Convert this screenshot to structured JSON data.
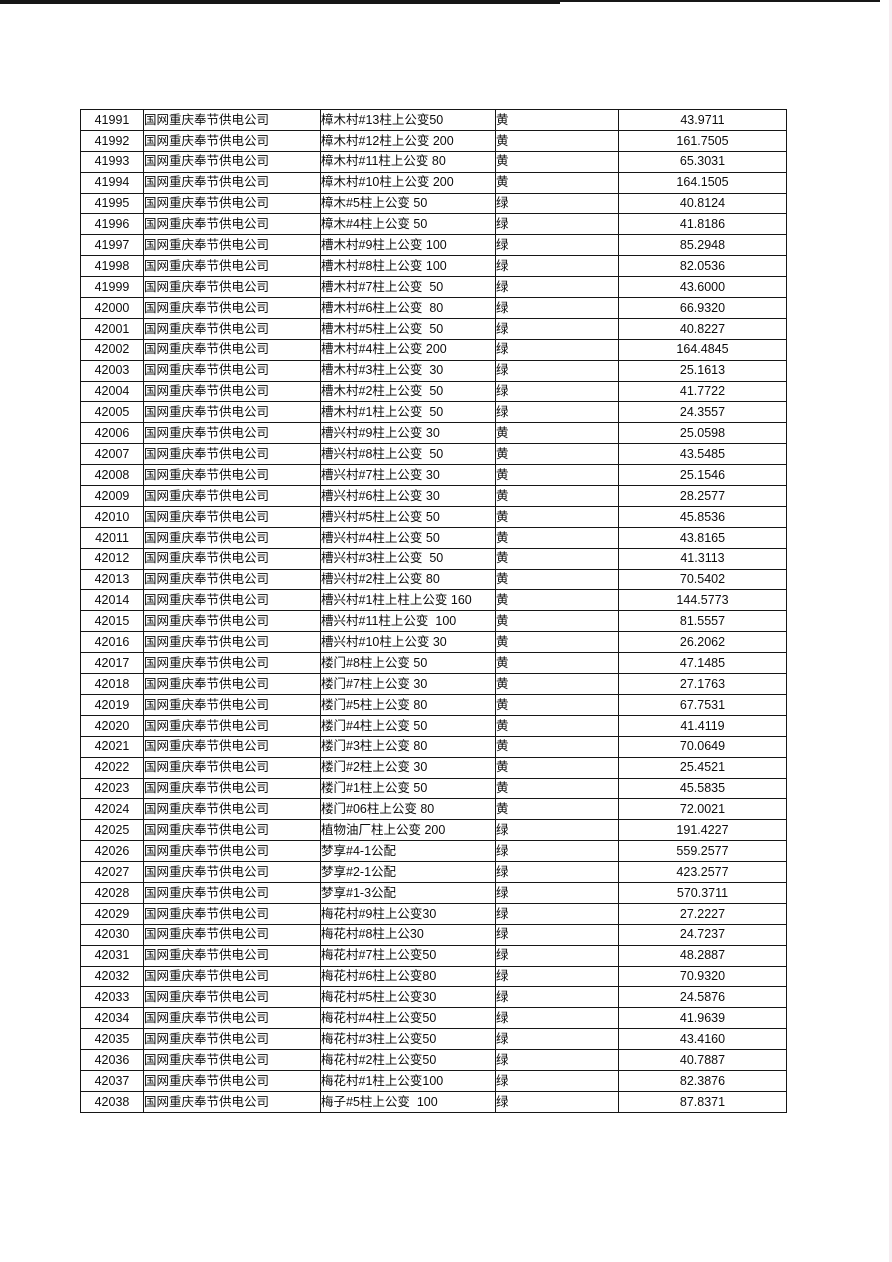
{
  "page": {
    "kind": "scanned-table-page"
  },
  "colors": {
    "ink": "#161616",
    "text": "#0c0c0c",
    "edge": "#f6edf1",
    "background": "#ffffff"
  },
  "table": {
    "columns": [
      {
        "key": "id"
      },
      {
        "key": "company"
      },
      {
        "key": "name"
      },
      {
        "key": "flag"
      },
      {
        "key": "value"
      }
    ],
    "rows": [
      [
        "41991",
        "国网重庆奉节供电公司",
        "樟木村#13柱上公变50",
        "黄",
        "43.9711"
      ],
      [
        "41992",
        "国网重庆奉节供电公司",
        "樟木村#12柱上公变 200",
        "黄",
        "161.7505"
      ],
      [
        "41993",
        "国网重庆奉节供电公司",
        "樟木村#11柱上公变 80",
        "黄",
        "65.3031"
      ],
      [
        "41994",
        "国网重庆奉节供电公司",
        "樟木村#10柱上公变 200",
        "黄",
        "164.1505"
      ],
      [
        "41995",
        "国网重庆奉节供电公司",
        "樟木#5柱上公变 50",
        "绿",
        "40.8124"
      ],
      [
        "41996",
        "国网重庆奉节供电公司",
        "樟木#4柱上公变 50",
        "绿",
        "41.8186"
      ],
      [
        "41997",
        "国网重庆奉节供电公司",
        "槽木村#9柱上公变 100",
        "绿",
        "85.2948"
      ],
      [
        "41998",
        "国网重庆奉节供电公司",
        "槽木村#8柱上公变 100",
        "绿",
        "82.0536"
      ],
      [
        "41999",
        "国网重庆奉节供电公司",
        "槽木村#7柱上公变  50",
        "绿",
        "43.6000"
      ],
      [
        "42000",
        "国网重庆奉节供电公司",
        "槽木村#6柱上公变  80",
        "绿",
        "66.9320"
      ],
      [
        "42001",
        "国网重庆奉节供电公司",
        "槽木村#5柱上公变  50",
        "绿",
        "40.8227"
      ],
      [
        "42002",
        "国网重庆奉节供电公司",
        "槽木村#4柱上公变 200",
        "绿",
        "164.4845"
      ],
      [
        "42003",
        "国网重庆奉节供电公司",
        "槽木村#3柱上公变  30",
        "绿",
        "25.1613"
      ],
      [
        "42004",
        "国网重庆奉节供电公司",
        "槽木村#2柱上公变  50",
        "绿",
        "41.7722"
      ],
      [
        "42005",
        "国网重庆奉节供电公司",
        "槽木村#1柱上公变  50",
        "绿",
        "24.3557"
      ],
      [
        "42006",
        "国网重庆奉节供电公司",
        "槽兴村#9柱上公变 30",
        "黄",
        "25.0598"
      ],
      [
        "42007",
        "国网重庆奉节供电公司",
        "槽兴村#8柱上公变  50",
        "黄",
        "43.5485"
      ],
      [
        "42008",
        "国网重庆奉节供电公司",
        "槽兴村#7柱上公变 30",
        "黄",
        "25.1546"
      ],
      [
        "42009",
        "国网重庆奉节供电公司",
        "槽兴村#6柱上公变 30",
        "黄",
        "28.2577"
      ],
      [
        "42010",
        "国网重庆奉节供电公司",
        "槽兴村#5柱上公变 50",
        "黄",
        "45.8536"
      ],
      [
        "42011",
        "国网重庆奉节供电公司",
        "槽兴村#4柱上公变 50",
        "黄",
        "43.8165"
      ],
      [
        "42012",
        "国网重庆奉节供电公司",
        "槽兴村#3柱上公变  50",
        "黄",
        "41.3113"
      ],
      [
        "42013",
        "国网重庆奉节供电公司",
        "槽兴村#2柱上公变 80",
        "黄",
        "70.5402"
      ],
      [
        "42014",
        "国网重庆奉节供电公司",
        "槽兴村#1柱上柱上公变 160",
        "黄",
        "144.5773"
      ],
      [
        "42015",
        "国网重庆奉节供电公司",
        "槽兴村#11柱上公变  100",
        "黄",
        "81.5557"
      ],
      [
        "42016",
        "国网重庆奉节供电公司",
        "槽兴村#10柱上公变 30",
        "黄",
        "26.2062"
      ],
      [
        "42017",
        "国网重庆奉节供电公司",
        "楼门#8柱上公变 50",
        "黄",
        "47.1485"
      ],
      [
        "42018",
        "国网重庆奉节供电公司",
        "楼门#7柱上公变 30",
        "黄",
        "27.1763"
      ],
      [
        "42019",
        "国网重庆奉节供电公司",
        "楼门#5柱上公变 80",
        "黄",
        "67.7531"
      ],
      [
        "42020",
        "国网重庆奉节供电公司",
        "楼门#4柱上公变 50",
        "黄",
        "41.4119"
      ],
      [
        "42021",
        "国网重庆奉节供电公司",
        "楼门#3柱上公变 80",
        "黄",
        "70.0649"
      ],
      [
        "42022",
        "国网重庆奉节供电公司",
        "楼门#2柱上公变 30",
        "黄",
        "25.4521"
      ],
      [
        "42023",
        "国网重庆奉节供电公司",
        "楼门#1柱上公变 50",
        "黄",
        "45.5835"
      ],
      [
        "42024",
        "国网重庆奉节供电公司",
        "楼门#06柱上公变 80",
        "黄",
        "72.0021"
      ],
      [
        "42025",
        "国网重庆奉节供电公司",
        "植物油厂柱上公变 200",
        "绿",
        "191.4227"
      ],
      [
        "42026",
        "国网重庆奉节供电公司",
        "梦享#4-1公配",
        "绿",
        "559.2577"
      ],
      [
        "42027",
        "国网重庆奉节供电公司",
        "梦享#2-1公配",
        "绿",
        "423.2577"
      ],
      [
        "42028",
        "国网重庆奉节供电公司",
        "梦享#1-3公配",
        "绿",
        "570.3711"
      ],
      [
        "42029",
        "国网重庆奉节供电公司",
        "梅花村#9柱上公变30",
        "绿",
        "27.2227"
      ],
      [
        "42030",
        "国网重庆奉节供电公司",
        "梅花村#8柱上公30",
        "绿",
        "24.7237"
      ],
      [
        "42031",
        "国网重庆奉节供电公司",
        "梅花村#7柱上公变50",
        "绿",
        "48.2887"
      ],
      [
        "42032",
        "国网重庆奉节供电公司",
        "梅花村#6柱上公变80",
        "绿",
        "70.9320"
      ],
      [
        "42033",
        "国网重庆奉节供电公司",
        "梅花村#5柱上公变30",
        "绿",
        "24.5876"
      ],
      [
        "42034",
        "国网重庆奉节供电公司",
        "梅花村#4柱上公变50",
        "绿",
        "41.9639"
      ],
      [
        "42035",
        "国网重庆奉节供电公司",
        "梅花村#3柱上公变50",
        "绿",
        "43.4160"
      ],
      [
        "42036",
        "国网重庆奉节供电公司",
        "梅花村#2柱上公变50",
        "绿",
        "40.7887"
      ],
      [
        "42037",
        "国网重庆奉节供电公司",
        "梅花村#1柱上公变100",
        "绿",
        "82.3876"
      ],
      [
        "42038",
        "国网重庆奉节供电公司",
        "梅子#5柱上公变  100",
        "绿",
        "87.8371"
      ]
    ]
  }
}
